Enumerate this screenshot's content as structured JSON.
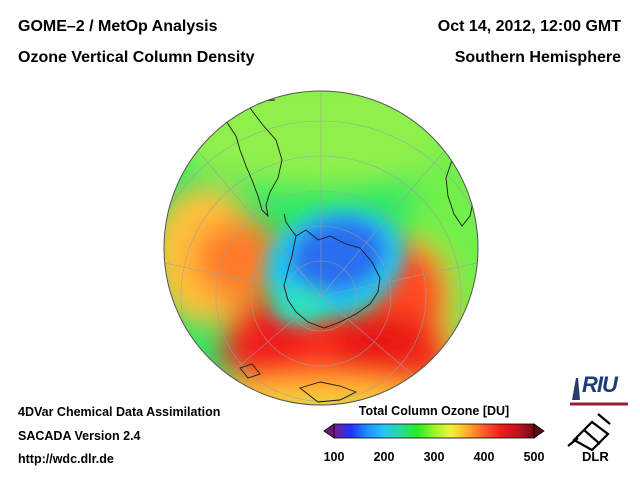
{
  "header": {
    "instrument": "GOME–2 / MetOp Analysis",
    "product": "Ozone Vertical Column Density",
    "datetime": "Oct 14, 2012, 12:00 GMT",
    "region": "Southern Hemisphere"
  },
  "footer": {
    "method": "4DVar Chemical Data Assimilation",
    "version": "SACADA Version 2.4",
    "url": "http://wdc.dlr.de"
  },
  "colorbar": {
    "title": "Total Column Ozone [DU]",
    "ticks": [
      "100",
      "200",
      "300",
      "400",
      "500"
    ],
    "range": [
      100,
      500
    ],
    "colors": [
      "#7a1f8c",
      "#2030ff",
      "#1e90ff",
      "#22c6f5",
      "#2bd99a",
      "#22ee22",
      "#9af52a",
      "#f2f23a",
      "#ffae2a",
      "#ff5a2a",
      "#ee1c1c",
      "#c4121e",
      "#6e0c18"
    ]
  },
  "logos": {
    "riu": "RIU",
    "dlr": "DLR"
  },
  "map_data": {
    "projection": "orthographic-south-polar",
    "ozone_hole": {
      "min_du": 160,
      "description": "low values over Antarctica"
    },
    "max_ring_du": 480,
    "colors": {
      "hole": "#2b6ef0",
      "ring": "#ee2a20",
      "background": "#22e860",
      "mid": "#7ff05a",
      "high": "#ffb020"
    }
  }
}
